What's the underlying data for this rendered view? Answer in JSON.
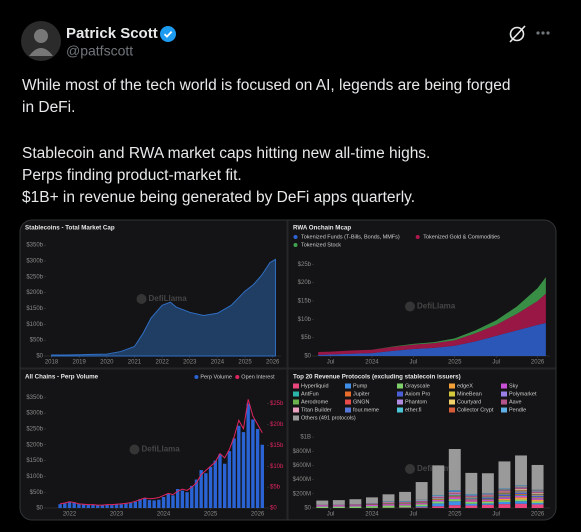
{
  "tweet": {
    "name": "Patrick Scott",
    "handle": "@patfscott",
    "lines": [
      "While most of the tech world is focused on AI, legends are being forged",
      "in DeFi.",
      "Stablecoin and RWA market caps hitting new all-time highs.",
      "Perps finding product-market fit.",
      "$1B+ in revenue being generated by DeFi apps quarterly."
    ]
  },
  "chart_data": [
    {
      "type": "area",
      "title": "Stablecoins - Total Market Cap",
      "watermark": "DefiLlama",
      "color": "#2f6fc4",
      "x": [
        2018,
        2018.5,
        2019,
        2019.5,
        2020,
        2020.5,
        2021,
        2021.3,
        2021.6,
        2022,
        2022.3,
        2022.5,
        2023,
        2023.5,
        2024,
        2024.5,
        2025,
        2025.3,
        2025.6,
        2025.9,
        2026.1
      ],
      "values": [
        3,
        3,
        4,
        5,
        6,
        14,
        30,
        70,
        120,
        160,
        170,
        155,
        138,
        128,
        135,
        160,
        205,
        225,
        255,
        295,
        305
      ],
      "xlim": [
        2017.8,
        2026.3
      ],
      "xticks": [
        2018,
        2019,
        2020,
        2021,
        2022,
        2023,
        2024,
        2025,
        2026
      ],
      "ylim": [
        0,
        360
      ],
      "yticks": [
        {
          "value": 0,
          "label": "$0"
        },
        {
          "value": 50,
          "label": "$50b"
        },
        {
          "value": 100,
          "label": "$100b"
        },
        {
          "value": 150,
          "label": "$150b"
        },
        {
          "value": 200,
          "label": "$200b"
        },
        {
          "value": 250,
          "label": "$250b"
        },
        {
          "value": 300,
          "label": "$300b"
        },
        {
          "value": 350,
          "label": "$350b"
        }
      ]
    },
    {
      "type": "area",
      "stacked": true,
      "title": "RWA Onchain Mcap",
      "watermark": "DefiLlama",
      "legend": "top",
      "x": [
        2023.35,
        2023.5,
        2023.75,
        2024,
        2024.25,
        2024.5,
        2024.75,
        2025,
        2025.25,
        2025.5,
        2025.75,
        2026,
        2026.1
      ],
      "series": [
        {
          "name": "Tokenized Funds (T-Bills, Bonds, MMFs)",
          "color": "#2f63d6",
          "values": [
            0.3,
            0.4,
            0.6,
            0.8,
            1.4,
            1.9,
            2.2,
            2.8,
            4,
            5.5,
            7,
            8.5,
            9
          ]
        },
        {
          "name": "Tokenized Gold & Commodities",
          "color": "#b0174e",
          "values": [
            0.8,
            0.8,
            0.9,
            0.9,
            1.1,
            1.2,
            1.3,
            1.5,
            2.2,
            3,
            4.5,
            6.5,
            8
          ]
        },
        {
          "name": "Tokenized Stock",
          "color": "#3fa34d",
          "values": [
            0,
            0,
            0,
            0,
            0.1,
            0.2,
            0.3,
            0.5,
            0.8,
            1.2,
            2,
            3.5,
            4.5
          ]
        }
      ],
      "xlim": [
        2023.3,
        2026.15
      ],
      "xticks": [
        {
          "value": 2023.5,
          "label": "Jul"
        },
        2024,
        {
          "value": 2024.5,
          "label": "Jul"
        },
        2025,
        {
          "value": 2025.5,
          "label": "Jul"
        },
        2026
      ],
      "ylim": [
        0,
        27
      ],
      "yticks": [
        {
          "value": 0,
          "label": "$0"
        },
        {
          "value": 5,
          "label": "$5b"
        },
        {
          "value": 10,
          "label": "$10b"
        },
        {
          "value": 15,
          "label": "$15b"
        },
        {
          "value": 20,
          "label": "$20b"
        },
        {
          "value": 25,
          "label": "$25b"
        }
      ]
    },
    {
      "type": "bar",
      "title": "All Chains - Perp Volume",
      "watermark": "DefiLlama",
      "legend": "upper right",
      "x": [
        2021.8,
        2021.9,
        2022,
        2022.1,
        2022.2,
        2022.3,
        2022.4,
        2022.5,
        2022.6,
        2022.7,
        2022.8,
        2022.9,
        2023,
        2023.1,
        2023.2,
        2023.3,
        2023.4,
        2023.5,
        2023.6,
        2023.7,
        2023.8,
        2023.9,
        2024,
        2024.1,
        2024.2,
        2024.3,
        2024.4,
        2024.5,
        2024.6,
        2024.7,
        2024.8,
        2024.9,
        2025,
        2025.1,
        2025.2,
        2025.3,
        2025.4,
        2025.5,
        2025.6,
        2025.7,
        2025.8,
        2025.9,
        2026,
        2026.1
      ],
      "series": [
        {
          "name": "Perp Volume",
          "color": "#2a63d4",
          "values": [
            12,
            15,
            20,
            18,
            14,
            12,
            10,
            11,
            9,
            8,
            10,
            9,
            11,
            12,
            14,
            16,
            20,
            28,
            30,
            25,
            24,
            26,
            35,
            45,
            40,
            60,
            55,
            50,
            70,
            90,
            120,
            110,
            130,
            150,
            170,
            140,
            180,
            220,
            260,
            240,
            330,
            280,
            250,
            200
          ]
        },
        {
          "name": "Open Interest",
          "color": "#e0245e",
          "type": "line",
          "axis": "y2",
          "values": [
            1,
            1.2,
            1.5,
            1.3,
            1,
            0.9,
            0.8,
            0.8,
            0.7,
            0.7,
            0.8,
            0.8,
            0.9,
            1,
            1.1,
            1.3,
            1.6,
            2,
            2.4,
            2.2,
            2.3,
            2.5,
            3,
            3.5,
            3.2,
            4,
            4.5,
            4.2,
            5,
            6,
            8,
            9,
            10,
            11,
            13,
            12,
            14,
            17,
            21,
            19,
            26,
            22,
            20,
            18
          ]
        }
      ],
      "xlim": [
        2021.5,
        2026.2
      ],
      "xticks": [
        2022,
        2023,
        2024,
        2025,
        2026
      ],
      "ylim": [
        0,
        370
      ],
      "yticks": [
        {
          "value": 0,
          "label": "$0"
        },
        {
          "value": 50,
          "label": "$50b"
        },
        {
          "value": 100,
          "label": "$100b"
        },
        {
          "value": 150,
          "label": "$150b"
        },
        {
          "value": 200,
          "label": "$200b"
        },
        {
          "value": 250,
          "label": "$250b"
        },
        {
          "value": 300,
          "label": "$300b"
        },
        {
          "value": 350,
          "label": "$350b"
        }
      ],
      "y2lim": [
        0,
        28
      ],
      "y2ticks": [
        {
          "value": 0,
          "label": "$0"
        },
        {
          "value": 5,
          "label": "$5b"
        },
        {
          "value": 10,
          "label": "$10b"
        },
        {
          "value": 15,
          "label": "$15b"
        },
        {
          "value": 20,
          "label": "$20b"
        },
        {
          "value": 25,
          "label": "$25b"
        }
      ]
    },
    {
      "type": "bar",
      "stacked": true,
      "title": "Top 20 Revenue Protocols (excluding stablecoin issuers)",
      "watermark": "DefiLlama",
      "legend": "top",
      "x": [
        2023.4,
        2023.6,
        2023.8,
        2024,
        2024.2,
        2024.4,
        2024.6,
        2024.8,
        2025,
        2025.2,
        2025.4,
        2025.6,
        2025.8,
        2026
      ],
      "series": [
        {
          "name": "Hyperliquid",
          "color": "#e8467c",
          "values": [
            0,
            0,
            0,
            2,
            4,
            6,
            10,
            25,
            40,
            35,
            45,
            55,
            60,
            50
          ]
        },
        {
          "name": "Pump",
          "color": "#3f8ee8",
          "values": [
            0,
            0,
            0,
            0,
            0,
            3,
            15,
            40,
            55,
            25,
            20,
            30,
            35,
            20
          ]
        },
        {
          "name": "Grayscale",
          "color": "#7fcf6a",
          "values": [
            20,
            20,
            22,
            25,
            30,
            28,
            25,
            28,
            30,
            25,
            22,
            24,
            25,
            22
          ]
        },
        {
          "name": "edgeX",
          "color": "#f3a03b",
          "values": [
            0,
            0,
            0,
            0,
            0,
            0,
            0,
            0,
            2,
            5,
            10,
            20,
            30,
            25
          ]
        },
        {
          "name": "Sky",
          "color": "#c94fd6",
          "values": [
            15,
            15,
            16,
            18,
            20,
            18,
            18,
            20,
            22,
            20,
            20,
            22,
            24,
            22
          ]
        },
        {
          "name": "AntFun",
          "color": "#2bb5a9",
          "values": [
            0,
            0,
            0,
            0,
            0,
            0,
            0,
            0,
            0,
            0,
            5,
            10,
            12,
            8
          ]
        },
        {
          "name": "Jupiter",
          "color": "#e86c2b",
          "values": [
            0,
            0,
            1,
            3,
            5,
            6,
            6,
            10,
            15,
            10,
            8,
            10,
            12,
            9
          ]
        },
        {
          "name": "Axiom Pro",
          "color": "#4a5fd6",
          "values": [
            0,
            0,
            0,
            0,
            0,
            0,
            0,
            0,
            10,
            15,
            18,
            20,
            22,
            15
          ]
        },
        {
          "name": "MineBean",
          "color": "#d4c93a",
          "values": [
            0,
            0,
            0,
            0,
            0,
            0,
            0,
            0,
            0,
            0,
            0,
            5,
            10,
            6
          ]
        },
        {
          "name": "Polymarket",
          "color": "#9b7fe8",
          "values": [
            0,
            0,
            0,
            0,
            0,
            0,
            0,
            0,
            0,
            0,
            0,
            3,
            8,
            10
          ]
        },
        {
          "name": "Aerodrome",
          "color": "#6ab04c",
          "values": [
            0,
            0,
            2,
            4,
            6,
            6,
            8,
            10,
            12,
            10,
            10,
            10,
            10,
            8
          ]
        },
        {
          "name": "GNGN",
          "color": "#e84a4a",
          "values": [
            0,
            0,
            0,
            0,
            0,
            0,
            0,
            0,
            0,
            0,
            5,
            8,
            6,
            4
          ]
        },
        {
          "name": "Phantom",
          "color": "#b08de0",
          "values": [
            0,
            0,
            0,
            0,
            3,
            4,
            6,
            10,
            12,
            6,
            5,
            6,
            6,
            5
          ]
        },
        {
          "name": "Courtyard",
          "color": "#f2d16b",
          "values": [
            0,
            0,
            0,
            0,
            0,
            0,
            0,
            0,
            3,
            5,
            6,
            8,
            10,
            9
          ]
        },
        {
          "name": "Aave",
          "color": "#b5548a",
          "values": [
            6,
            6,
            7,
            8,
            10,
            10,
            10,
            12,
            14,
            12,
            12,
            14,
            16,
            15
          ]
        },
        {
          "name": "Titan Builder",
          "color": "#e8a2c0",
          "values": [
            3,
            3,
            4,
            5,
            6,
            6,
            7,
            8,
            10,
            6,
            5,
            5,
            6,
            5
          ]
        },
        {
          "name": "four.meme",
          "color": "#5577d8",
          "values": [
            0,
            0,
            0,
            0,
            0,
            0,
            0,
            5,
            12,
            8,
            4,
            6,
            4,
            3
          ]
        },
        {
          "name": "ether.fi",
          "color": "#4cc6d6",
          "values": [
            0,
            0,
            0,
            2,
            4,
            4,
            5,
            6,
            7,
            6,
            6,
            7,
            8,
            7
          ]
        },
        {
          "name": "Collector Crypt",
          "color": "#d65c3a",
          "values": [
            0,
            0,
            0,
            0,
            0,
            0,
            0,
            0,
            0,
            0,
            2,
            6,
            8,
            6
          ]
        },
        {
          "name": "Pendle",
          "color": "#5fb0e8",
          "values": [
            1,
            2,
            2,
            3,
            5,
            6,
            6,
            7,
            8,
            7,
            7,
            8,
            9,
            8
          ]
        },
        {
          "name": "Others (491 protocols)",
          "color": "#9a9a9a",
          "values": [
            60,
            65,
            70,
            80,
            100,
            130,
            250,
            420,
            580,
            300,
            280,
            380,
            420,
            350
          ]
        }
      ],
      "xlim": [
        2023.3,
        2026.15
      ],
      "xticks": [
        {
          "value": 2023.5,
          "label": "Jul"
        },
        2024,
        {
          "value": 2024.5,
          "label": "Jul"
        },
        2025,
        {
          "value": 2025.5,
          "label": "Jul"
        },
        2026
      ],
      "ylim": [
        0,
        1100
      ],
      "yticks": [
        {
          "value": 0,
          "label": "$0"
        },
        {
          "value": 200,
          "label": "$200M"
        },
        {
          "value": 400,
          "label": "$400M"
        },
        {
          "value": 600,
          "label": "$600M"
        },
        {
          "value": 800,
          "label": "$800M"
        },
        {
          "value": 1000,
          "label": "$1B"
        }
      ]
    }
  ]
}
